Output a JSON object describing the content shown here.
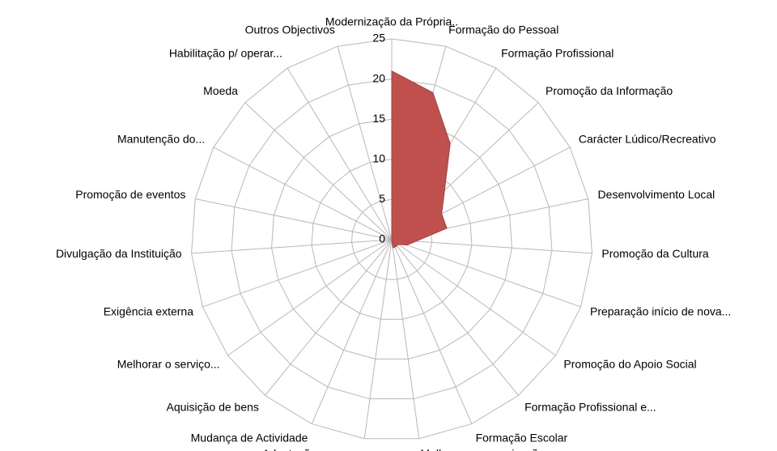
{
  "chart_data": {
    "type": "radar",
    "categories": [
      "Modernização da Própria..",
      "Formação do Pessoal",
      "Formação Profissional",
      "Promoção da Informação",
      "Carácter Lúdico/Recreativo",
      "Desenvolvimento Local",
      "Promoção da Cultura",
      "Preparação início de nova...",
      "Promoção do Apoio Social",
      "Formação Profissional e...",
      "Formação Escolar",
      "Melhorar a comunicação...",
      "Adaptação a nova...",
      "Mudança de Actividade",
      "Aquisição de bens",
      "Melhorar o serviço...",
      "Exigência externa",
      "Divulgação da Instituição",
      "Promoção de eventos",
      "Manutenção do...",
      "Moeda",
      "Habilitação p/ operar...",
      "Outros Objectivos"
    ],
    "values": [
      21,
      19,
      14,
      9,
      7,
      7,
      3,
      2,
      1,
      1,
      1,
      1,
      0,
      0,
      0,
      0,
      0,
      0,
      0,
      0,
      0,
      0,
      0
    ],
    "color": "#c0504d",
    "ylim": [
      0,
      25
    ],
    "yticks": [
      0,
      5,
      10,
      15,
      20,
      25
    ],
    "grid": true
  }
}
